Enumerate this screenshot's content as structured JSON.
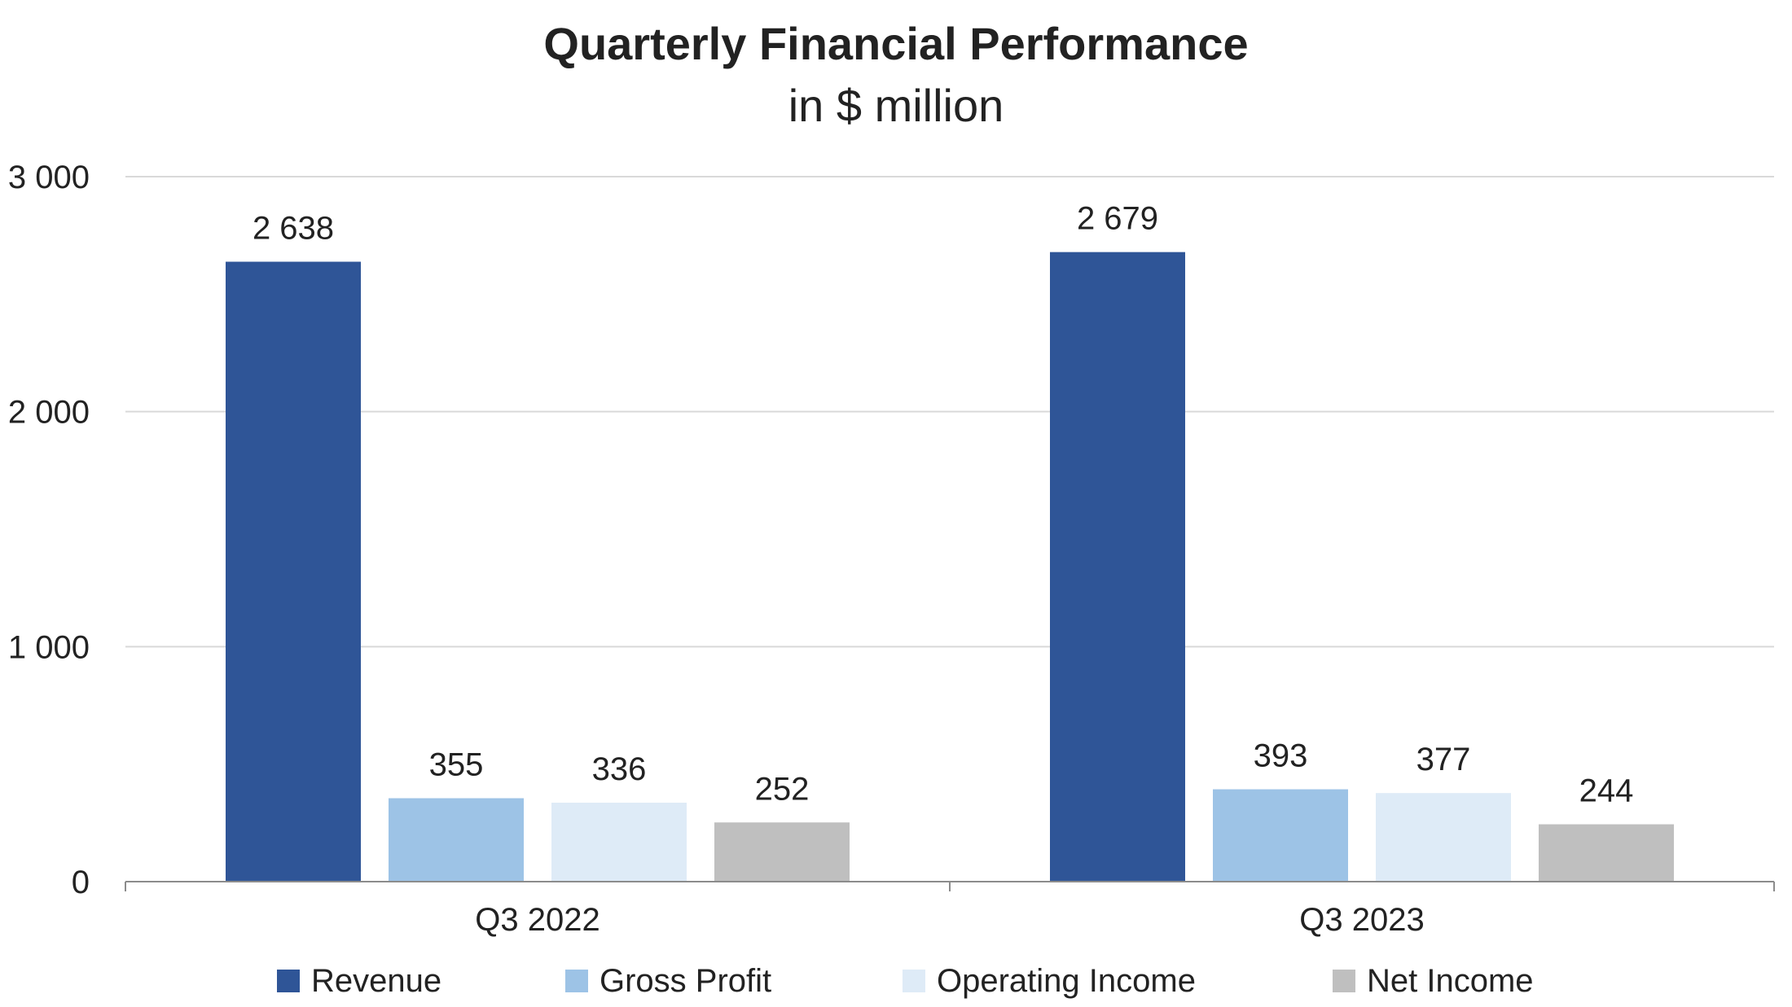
{
  "chart_data": {
    "type": "bar",
    "title": "Quarterly Financial Performance",
    "subtitle": "in $ million",
    "categories": [
      "Q3 2022",
      "Q3 2023"
    ],
    "series": [
      {
        "name": "Revenue",
        "color": "#2F5597",
        "values": [
          2638,
          2679
        ],
        "labels": [
          "2 638",
          "2 679"
        ]
      },
      {
        "name": "Gross Profit",
        "color": "#9DC3E6",
        "values": [
          355,
          393
        ],
        "labels": [
          "355",
          "393"
        ]
      },
      {
        "name": "Operating Income",
        "color": "#DEEBF7",
        "values": [
          336,
          377
        ],
        "labels": [
          "336",
          "377"
        ]
      },
      {
        "name": "Net Income",
        "color": "#BFBFBF",
        "values": [
          252,
          244
        ],
        "labels": [
          "252",
          "244"
        ]
      }
    ],
    "ylim": [
      0,
      3000
    ],
    "yticks": [
      0,
      1000,
      2000,
      3000
    ],
    "ytick_labels": [
      "0",
      "1 000",
      "2 000",
      "3 000"
    ],
    "grid": true,
    "legend_position": "bottom"
  }
}
